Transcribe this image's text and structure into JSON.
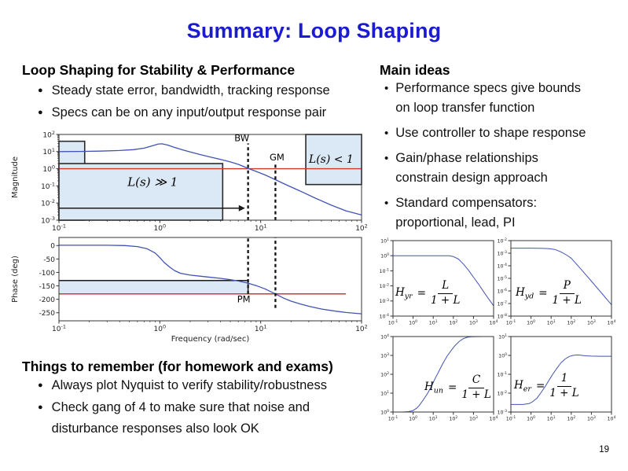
{
  "slide": {
    "title": "Summary: Loop Shaping",
    "page_number": "19"
  },
  "left": {
    "heading": "Loop Shaping for Stability & Performance",
    "bullets": [
      "Steady state error, bandwidth, tracking response",
      "Specs can be on any input/output response pair"
    ],
    "things_heading": "Things to remember (for homework and exams)",
    "things_bullets": [
      "Always plot Nyquist to verify stability/robustness",
      "Check gang of 4 to make sure that noise and\ndisturbance responses also look OK"
    ]
  },
  "right": {
    "heading": "Main ideas",
    "bullets": [
      "Performance specs give bounds\non loop transfer function",
      "Use controller to shape response",
      "Gain/phase relationships\nconstrain design approach",
      "Standard compensators:\nproportional, lead, PI"
    ]
  },
  "colors": {
    "title_blue": "#1b1bd1",
    "curve_blue": "#4253b4",
    "spec_red": "#cc3b2a",
    "region_fill": "#dbe9f6",
    "line_black": "#1a1a1a"
  },
  "chart_data": [
    {
      "name": "bode-magnitude",
      "type": "line",
      "x_scale": "log",
      "y_scale": "log",
      "xlim": [
        0.1,
        100
      ],
      "ylim": [
        0.001,
        100
      ],
      "ylabel": "Magnitude",
      "series": [
        {
          "name": "L",
          "color": "#4253b4",
          "points": [
            [
              0.1,
              10
            ],
            [
              0.16,
              10.2
            ],
            [
              0.25,
              10.7
            ],
            [
              0.4,
              11.6
            ],
            [
              0.55,
              13
            ],
            [
              0.7,
              16
            ],
            [
              0.85,
              22
            ],
            [
              0.97,
              28
            ],
            [
              1.05,
              28.5
            ],
            [
              1.2,
              24
            ],
            [
              1.4,
              17.5
            ],
            [
              1.7,
              12.5
            ],
            [
              2,
              9.5
            ],
            [
              2.5,
              6.8
            ],
            [
              3,
              5.2
            ],
            [
              4,
              3.5
            ],
            [
              5,
              2.5
            ],
            [
              6,
              1.8
            ],
            [
              7.5,
              1.05
            ],
            [
              9,
              0.7
            ],
            [
              11,
              0.44
            ],
            [
              14,
              0.23
            ],
            [
              18,
              0.115
            ],
            [
              25,
              0.048
            ],
            [
              35,
              0.019
            ],
            [
              50,
              0.0075
            ],
            [
              70,
              0.0035
            ],
            [
              100,
              0.002
            ]
          ]
        }
      ],
      "regions": [
        {
          "x1": 0.1,
          "x2": 0.18,
          "y1": 0.001,
          "y2": 40,
          "fill": "#dbe9f6",
          "stroke": "#2a2a2a"
        },
        {
          "x1": 0.1,
          "x2": 4.2,
          "y1": 0.001,
          "y2": 2,
          "fill": "#dbe9f6",
          "stroke": "#2a2a2a"
        },
        {
          "x1": 28,
          "x2": 100,
          "y1": 0.12,
          "y2": 100,
          "fill": "#dbe9f6",
          "stroke": "#2a2a2a"
        }
      ],
      "hlines": [
        {
          "y": 1,
          "x1": 0.1,
          "x2": 100,
          "color": "#cc3b2a",
          "w": 1.4
        }
      ],
      "arrows": [
        {
          "y": 0.005,
          "x1": 0.1,
          "x2": 7.0,
          "color": "#1a1a1a",
          "w": 1.6
        }
      ],
      "vlines_dashed": [
        {
          "x": 7.5,
          "y1": 0.001,
          "y2": 30
        },
        {
          "x": 14,
          "y1": 0.001,
          "y2": 2
        }
      ],
      "texts": [
        {
          "x": 6.5,
          "y": 40,
          "label": "BW",
          "cls": "sans"
        },
        {
          "x": 14.5,
          "y": 3.1,
          "label": "GM",
          "cls": "sans"
        },
        {
          "x": 0.85,
          "y": 0.1,
          "label": "L(s) ≫ 1",
          "cls": "math",
          "size": 15
        },
        {
          "x": 50,
          "y": 2.2,
          "label": "L(s) < 1",
          "cls": "math",
          "size": 14
        }
      ]
    },
    {
      "name": "bode-phase",
      "type": "line",
      "x_scale": "log",
      "y_scale": "linear",
      "xlim": [
        0.1,
        100
      ],
      "ylim": [
        -280,
        30
      ],
      "yticks": [
        0,
        -50,
        -100,
        -150,
        -200,
        -250
      ],
      "ylabel": "Phase (deg)",
      "xlabel": "Frequency (rad/sec)",
      "series": [
        {
          "name": "angle L",
          "color": "#4253b4",
          "points": [
            [
              0.1,
              1
            ],
            [
              0.3,
              1
            ],
            [
              0.45,
              0
            ],
            [
              0.6,
              -4
            ],
            [
              0.75,
              -12
            ],
            [
              0.9,
              -28
            ],
            [
              1,
              -45
            ],
            [
              1.1,
              -62
            ],
            [
              1.25,
              -80
            ],
            [
              1.4,
              -93
            ],
            [
              1.6,
              -103
            ],
            [
              2,
              -110
            ],
            [
              2.5,
              -114
            ],
            [
              3,
              -117
            ],
            [
              4,
              -122
            ],
            [
              5,
              -127
            ],
            [
              6,
              -132
            ],
            [
              7.5,
              -140
            ],
            [
              9,
              -149
            ],
            [
              11,
              -161
            ],
            [
              14,
              -180
            ],
            [
              17,
              -196
            ],
            [
              20,
              -207
            ],
            [
              25,
              -218
            ],
            [
              30,
              -226
            ],
            [
              40,
              -236
            ],
            [
              55,
              -244
            ],
            [
              70,
              -249
            ],
            [
              100,
              -254
            ]
          ]
        }
      ],
      "regions": [
        {
          "x1": 0.1,
          "x2": 7.5,
          "y1": -180,
          "y2": -130,
          "fill": "#dbe9f6"
        }
      ],
      "hlines": [
        {
          "y": -130,
          "x1": 0.1,
          "x2": 7.5,
          "color": "#1a1a1a",
          "w": 1.5
        },
        {
          "y": -180,
          "x1": 0.1,
          "x2": 70,
          "color": "#cc3b2a",
          "w": 1.5
        }
      ],
      "vlines": [
        {
          "x": 7.5,
          "y1": -130,
          "y2": -180,
          "color": "#1a1a1a",
          "w": 1.5
        }
      ],
      "vlines_dashed": [
        {
          "x": 7.5,
          "y1": -180,
          "y2": 30
        },
        {
          "x": 14,
          "y1": -232,
          "y2": 30
        }
      ],
      "texts": [
        {
          "x": 6.8,
          "y": -212,
          "label": "PM",
          "cls": "sans"
        }
      ]
    },
    {
      "name": "gang-of-four-Hyr",
      "type": "line",
      "x_scale": "log",
      "y_scale": "log",
      "xlim": [
        0.1,
        10000
      ],
      "ylim": [
        0.0001,
        10
      ],
      "series": [
        {
          "name": "Hyr",
          "color": "#4253b4",
          "points": [
            [
              0.1,
              1
            ],
            [
              1,
              1
            ],
            [
              10,
              1
            ],
            [
              30,
              1
            ],
            [
              60,
              0.99
            ],
            [
              100,
              0.88
            ],
            [
              180,
              0.6
            ],
            [
              316,
              0.28
            ],
            [
              560,
              0.11
            ],
            [
              1000,
              0.038
            ],
            [
              1800,
              0.013
            ],
            [
              3162,
              0.0042
            ],
            [
              5600,
              0.0014
            ],
            [
              10000,
              0.00048
            ]
          ]
        }
      ],
      "formula": {
        "lhs": "H",
        "sub": "yr",
        "eq": "=",
        "num": "L",
        "den": "1 + L"
      }
    },
    {
      "name": "gang-of-four-Hyd",
      "type": "line",
      "x_scale": "log",
      "y_scale": "log",
      "xlim": [
        0.1,
        10000
      ],
      "ylim": [
        1e-08,
        0.01
      ],
      "series": [
        {
          "name": "Hyd",
          "color": "#4253b4",
          "points": [
            [
              0.1,
              0.0025
            ],
            [
              1,
              0.0025
            ],
            [
              4,
              0.0024
            ],
            [
              8,
              0.0023
            ],
            [
              15,
              0.002
            ],
            [
              30,
              0.0013
            ],
            [
              60,
              0.0007
            ],
            [
              100,
              0.0004
            ],
            [
              316,
              5e-05
            ],
            [
              1000,
              6e-06
            ],
            [
              3162,
              7e-07
            ],
            [
              10000,
              8e-08
            ]
          ]
        }
      ],
      "formula": {
        "lhs": "H",
        "sub": "yd",
        "eq": "=",
        "num": "P",
        "den": "1 + L"
      }
    },
    {
      "name": "gang-of-four-Hun",
      "type": "line",
      "x_scale": "log",
      "y_scale": "log",
      "xlim": [
        0.1,
        10000
      ],
      "ylim": [
        1,
        10000
      ],
      "series": [
        {
          "name": "Hun",
          "color": "#4253b4",
          "points": [
            [
              0.1,
              1
            ],
            [
              0.3,
              1
            ],
            [
              0.6,
              1.05
            ],
            [
              1,
              1.2
            ],
            [
              1.5,
              1.6
            ],
            [
              2,
              2.2
            ],
            [
              3,
              4
            ],
            [
              5,
              9
            ],
            [
              8,
              22
            ],
            [
              12,
              55
            ],
            [
              20,
              160
            ],
            [
              32,
              420
            ],
            [
              50,
              950
            ],
            [
              80,
              1900
            ],
            [
              120,
              3300
            ],
            [
              200,
              5600
            ],
            [
              320,
              7800
            ],
            [
              500,
              9200
            ],
            [
              800,
              9750
            ],
            [
              1500,
              9950
            ],
            [
              3000,
              10000
            ],
            [
              10000,
              10000
            ]
          ]
        }
      ],
      "formula": {
        "lhs": "H",
        "sub": "un",
        "eq": "=",
        "num": "C",
        "den": "1 + L"
      }
    },
    {
      "name": "gang-of-four-Her",
      "type": "line",
      "x_scale": "log",
      "y_scale": "log",
      "xlim": [
        0.1,
        10000
      ],
      "ylim": [
        0.001,
        10
      ],
      "series": [
        {
          "name": "Her",
          "color": "#4253b4",
          "points": [
            [
              0.1,
              0.0025
            ],
            [
              0.4,
              0.0025
            ],
            [
              0.8,
              0.0028
            ],
            [
              1.2,
              0.0035
            ],
            [
              2,
              0.0055
            ],
            [
              3,
              0.01
            ],
            [
              5,
              0.022
            ],
            [
              8,
              0.05
            ],
            [
              12,
              0.1
            ],
            [
              20,
              0.22
            ],
            [
              32,
              0.42
            ],
            [
              50,
              0.65
            ],
            [
              80,
              0.88
            ],
            [
              120,
              1.0
            ],
            [
              200,
              1.06
            ],
            [
              300,
              1.02
            ],
            [
              500,
              0.95
            ],
            [
              1000,
              0.92
            ],
            [
              3000,
              0.9
            ],
            [
              10000,
              0.9
            ]
          ]
        }
      ],
      "formula": {
        "lhs": "H",
        "sub": "er",
        "eq": "=",
        "num": "1",
        "den": "1 + L"
      }
    }
  ]
}
